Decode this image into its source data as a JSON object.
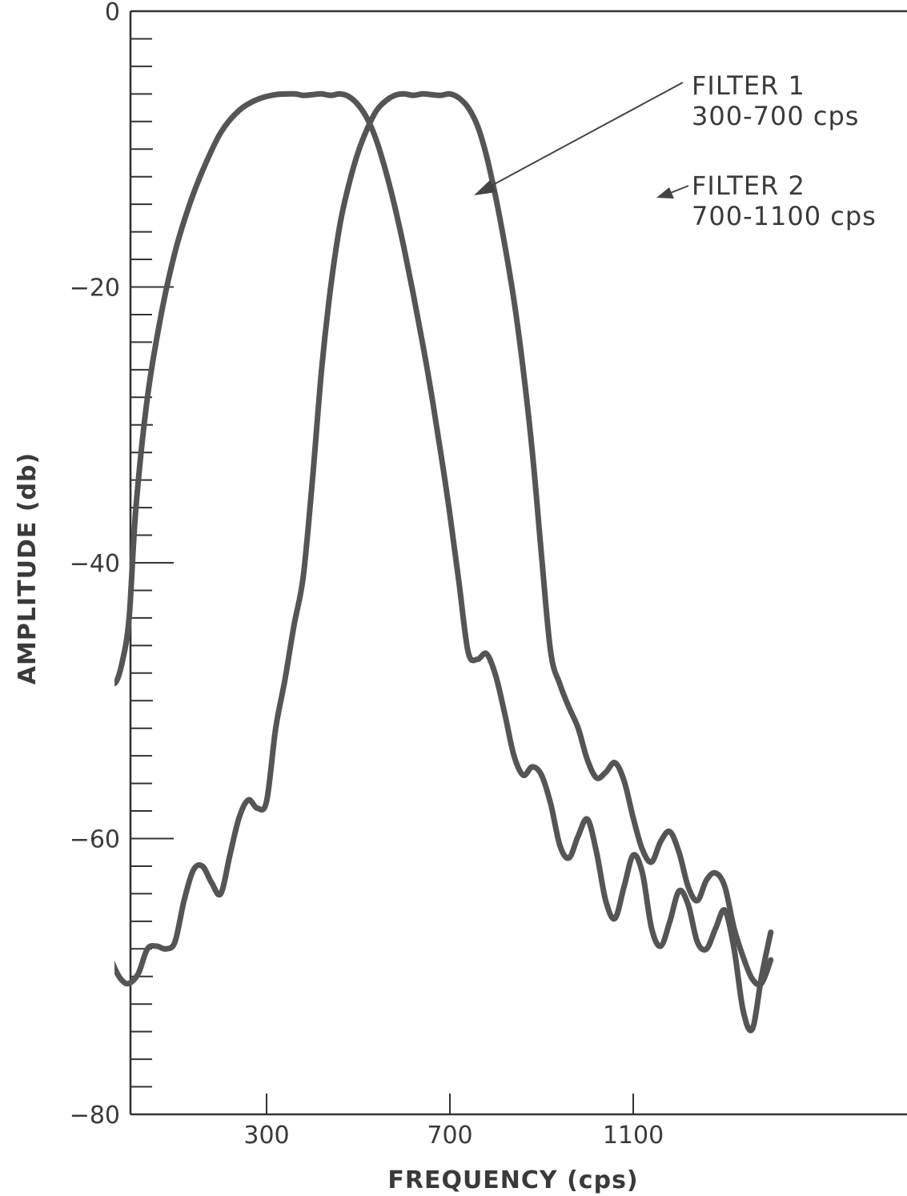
{
  "chart_data": {
    "type": "line",
    "title": "",
    "xlabel": "FREQUENCY (cps)",
    "ylabel": "AMPLITUDE (db)",
    "xlim": [
      0,
      1400
    ],
    "ylim": [
      -80,
      0
    ],
    "x_ticks": [
      {
        "value": 300,
        "label": "300"
      },
      {
        "value": 700,
        "label": "700"
      },
      {
        "value": 1100,
        "label": "1100"
      }
    ],
    "y_ticks": [
      {
        "value": 0,
        "label": "0"
      },
      {
        "value": -20,
        "label": "-20"
      },
      {
        "value": -40,
        "label": "-40"
      },
      {
        "value": -60,
        "label": "-60"
      },
      {
        "value": -80,
        "label": "-80"
      }
    ],
    "y_minor_step": 2,
    "grid": false,
    "series": [
      {
        "name": "FILTER 1",
        "subtitle": "300-700 cps",
        "x": [
          -100,
          -95,
          -85,
          -70,
          -58,
          -45,
          -30,
          -15,
          0,
          15,
          40,
          70,
          100,
          130,
          160,
          200,
          240,
          280,
          320,
          360,
          380,
          400,
          420,
          440,
          460,
          480,
          500,
          520,
          540,
          560,
          580,
          600,
          620,
          640,
          660,
          680,
          700,
          720,
          740,
          760,
          780,
          800,
          820,
          840,
          860,
          880,
          900,
          920,
          940,
          960,
          980,
          1000,
          1020,
          1040,
          1060,
          1080,
          1100,
          1120,
          1140,
          1160,
          1180,
          1200,
          1220,
          1240,
          1260,
          1280,
          1300,
          1320,
          1340,
          1360,
          1380,
          1400
        ],
        "y": [
          -53.5,
          -51,
          -48.5,
          -47.2,
          -46.8,
          -48.3,
          -48.7,
          -47.2,
          -44,
          -36,
          -28,
          -22,
          -17.5,
          -14.2,
          -11.6,
          -8.8,
          -7.2,
          -6.4,
          -6.05,
          -6,
          -6.1,
          -6.05,
          -6.0,
          -6.1,
          -6.0,
          -6.2,
          -6.8,
          -7.8,
          -9.4,
          -11.6,
          -14.2,
          -17.2,
          -20.5,
          -24,
          -27.8,
          -32,
          -36.5,
          -41.5,
          -46.5,
          -47,
          -46.6,
          -48.2,
          -51,
          -54,
          -55.4,
          -54.8,
          -55.4,
          -57.5,
          -60.5,
          -61.4,
          -59.8,
          -58.6,
          -61,
          -64.5,
          -65.8,
          -63.5,
          -61.2,
          -62.5,
          -66.5,
          -67.8,
          -66,
          -63.8,
          -64.8,
          -67.5,
          -68,
          -66.5,
          -65.2,
          -68,
          -72.5,
          -73.8,
          -70,
          -66.8
        ]
      },
      {
        "name": "FILTER 2",
        "subtitle": "700-1100 cps",
        "x": [
          -100,
          -95,
          -85,
          -75,
          -60,
          -45,
          -30,
          -15,
          0,
          20,
          40,
          60,
          80,
          100,
          120,
          140,
          160,
          180,
          200,
          220,
          240,
          260,
          280,
          300,
          320,
          340,
          360,
          380,
          400,
          420,
          440,
          460,
          480,
          500,
          520,
          540,
          560,
          580,
          600,
          620,
          640,
          660,
          680,
          700,
          720,
          740,
          760,
          780,
          800,
          820,
          840,
          860,
          880,
          900,
          920,
          940,
          960,
          980,
          1000,
          1020,
          1040,
          1060,
          1080,
          1100,
          1120,
          1140,
          1160,
          1180,
          1200,
          1220,
          1240,
          1260,
          1280,
          1300,
          1320,
          1340,
          1360,
          1380,
          1400
        ],
        "y": [
          -70.5,
          -68,
          -66,
          -65.2,
          -66.5,
          -68.2,
          -69.5,
          -70.3,
          -70.5,
          -69.8,
          -68,
          -67.8,
          -68,
          -67.5,
          -64.5,
          -62.3,
          -62,
          -63.2,
          -64,
          -61.2,
          -58.5,
          -57.2,
          -57.8,
          -57.3,
          -52,
          -48.5,
          -44.5,
          -41,
          -34,
          -26,
          -20,
          -15.5,
          -12.5,
          -10.2,
          -8.5,
          -7.2,
          -6.5,
          -6.1,
          -6.0,
          -6.1,
          -6.0,
          -6.05,
          -6.1,
          -6.0,
          -6.3,
          -7.0,
          -8.3,
          -10.5,
          -13.5,
          -17,
          -21,
          -26,
          -32,
          -39.5,
          -46.5,
          -48.8,
          -50.5,
          -52,
          -54.3,
          -55.6,
          -55.2,
          -54.5,
          -55.8,
          -58.5,
          -60.8,
          -61.7,
          -60.2,
          -59.5,
          -61,
          -63.5,
          -64.5,
          -63,
          -62.5,
          -63.5,
          -66.5,
          -68.6,
          -70.2,
          -70.5,
          -68.8
        ]
      }
    ]
  },
  "annotations": [
    {
      "label": "FILTER 1",
      "range": "300-700 cps"
    },
    {
      "label": "FILTER 2",
      "range": "700-1100 cps"
    }
  ]
}
